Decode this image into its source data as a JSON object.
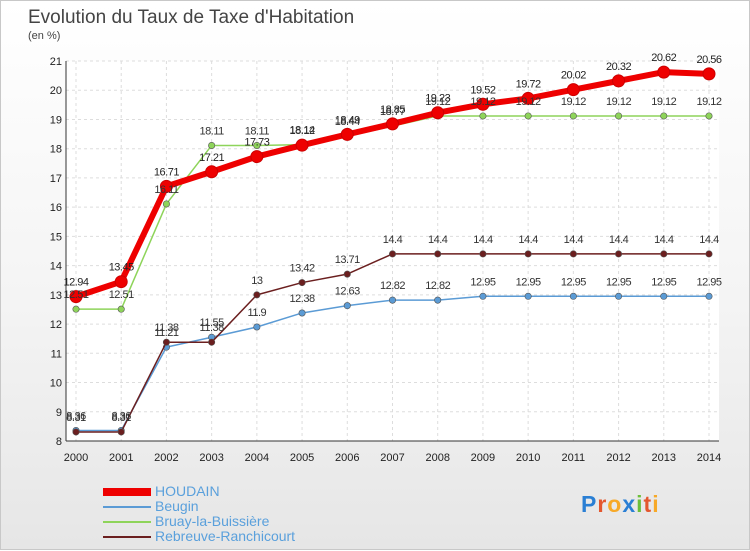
{
  "header": {
    "title": "Evolution du Taux de Taxe d'Habitation",
    "unit": "(en %)"
  },
  "logo": {
    "text": "Proxiti"
  },
  "chart_data": {
    "type": "line",
    "title": "Evolution du Taux de Taxe d'Habitation",
    "ylabel": "(en %)",
    "xlabel": "",
    "x": [
      "2000",
      "2001",
      "2002",
      "2003",
      "2004",
      "2005",
      "2006",
      "2007",
      "2008",
      "2009",
      "2010",
      "2011",
      "2012",
      "2013",
      "2014"
    ],
    "ylim": [
      8,
      21
    ],
    "yticks": [
      "8",
      "9",
      "10",
      "11",
      "12",
      "13",
      "14",
      "15",
      "16",
      "17",
      "18",
      "19",
      "20",
      "21"
    ],
    "grid": true,
    "legend_position": "bottom-left",
    "series": [
      {
        "name": "HOUDAIN",
        "color": "#ee0000",
        "values": [
          12.94,
          13.45,
          16.71,
          17.21,
          17.73,
          18.12,
          18.49,
          18.85,
          19.23,
          19.52,
          19.72,
          20.02,
          20.32,
          20.62,
          20.56
        ],
        "labels": [
          "12.94",
          "13.45",
          "16.71",
          "17.21",
          "17.73",
          "18.12",
          "18.49",
          "18.85",
          "19.23",
          "19.52",
          "19.72",
          "20.02",
          "20.32",
          "20.62",
          "20.56"
        ]
      },
      {
        "name": "Beugin",
        "color": "#5b9bd5",
        "values": [
          8.36,
          8.36,
          11.21,
          11.55,
          11.9,
          12.38,
          12.63,
          12.82,
          12.82,
          12.95,
          12.95,
          12.95,
          12.95,
          12.95,
          12.95
        ],
        "labels": [
          "8.36",
          "8.36",
          "11.21",
          "11.55",
          "11.9",
          "12.38",
          "12.63",
          "12.82",
          "12.82",
          "12.95",
          "12.95",
          "12.95",
          "12.95",
          "12.95",
          "12.95"
        ]
      },
      {
        "name": "Bruay-la-Buissière",
        "color": "#8ed45a",
        "values": [
          12.51,
          12.51,
          16.11,
          18.11,
          18.11,
          18.14,
          18.44,
          18.77,
          19.12,
          19.12,
          19.12,
          19.12,
          19.12,
          19.12,
          19.12
        ],
        "labels": [
          "12.51",
          "12.51",
          "16.11",
          "18.11",
          "18.11",
          "18.14",
          "18.44",
          "18.77",
          "19.12",
          "19.12",
          "19.12",
          "19.12",
          "19.12",
          "19.12",
          "19.12"
        ]
      },
      {
        "name": "Rebreuve-Ranchicourt",
        "color": "#6b1f1f",
        "values": [
          8.31,
          8.31,
          11.38,
          11.38,
          13,
          13.42,
          13.71,
          14.4,
          14.4,
          14.4,
          14.4,
          14.4,
          14.4,
          14.4,
          14.4
        ],
        "labels": [
          "8.31",
          "8.31",
          "11.38",
          "11.38",
          "13",
          "13.42",
          "13.71",
          "14.4",
          "14.4",
          "14.4",
          "14.4",
          "14.4",
          "14.4",
          "14.4",
          "14.4"
        ]
      }
    ]
  }
}
